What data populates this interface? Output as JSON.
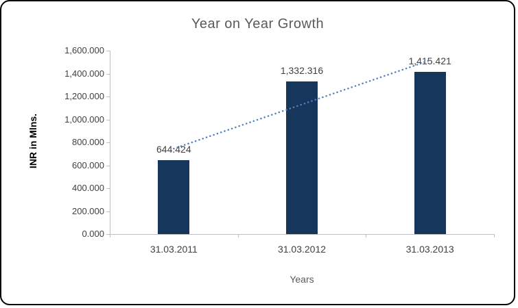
{
  "chart_data": {
    "type": "bar",
    "title": "Year on Year Growth",
    "xlabel": "Years",
    "ylabel": "INR in Mlns.",
    "categories": [
      "31.03.2011",
      "31.03.2012",
      "31.03.2013"
    ],
    "values": [
      644.424,
      1332.316,
      1415.421
    ],
    "data_labels": [
      "644.424",
      "1,332.316",
      "1,415.421"
    ],
    "ylim": [
      0,
      1600
    ],
    "ytick_step": 200,
    "ytick_labels": [
      "0.000",
      "200.000",
      "400.000",
      "600.000",
      "800.000",
      "1,000.000",
      "1,200.000",
      "1,400.000",
      "1,600.000"
    ],
    "grid": false,
    "legend_position": "none",
    "bar_color": "#16365C",
    "axis_color": "#BFBFBF",
    "text_color": "#404040",
    "title_color": "#595959",
    "trendline": {
      "type": "linear",
      "style": "dotted",
      "color": "#4F81BD"
    }
  }
}
